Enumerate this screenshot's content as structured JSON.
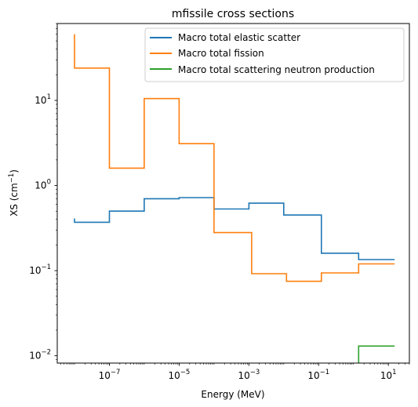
{
  "chart_data": {
    "type": "line",
    "title": "mfissile cross sections",
    "xlabel": "Energy (MeV)",
    "ylabel_main": "XS (cm",
    "ylabel_exp": "−1",
    "ylabel_close": ")",
    "xscale": "log",
    "yscale": "log",
    "xlim": [
      3.2e-09,
      40
    ],
    "ylim": [
      0.0082,
      80
    ],
    "grid": false,
    "legend_position": "top-right",
    "x_ticks": [
      {
        "value": 1e-07,
        "base": "10",
        "exp": "−7"
      },
      {
        "value": 1e-05,
        "base": "10",
        "exp": "−5"
      },
      {
        "value": 0.001,
        "base": "10",
        "exp": "−3"
      },
      {
        "value": 0.1,
        "base": "10",
        "exp": "−1"
      },
      {
        "value": 10,
        "base": "10",
        "exp": "1"
      }
    ],
    "y_ticks": [
      {
        "value": 0.01,
        "base": "10",
        "exp": "−2"
      },
      {
        "value": 0.1,
        "base": "10",
        "exp": "−1"
      },
      {
        "value": 1,
        "base": "10",
        "exp": "0"
      },
      {
        "value": 10,
        "base": "10",
        "exp": "1"
      }
    ],
    "series": [
      {
        "name": "Macro total elastic scatter",
        "color": "#1f77b4",
        "points": [
          [
            1e-08,
            0.41
          ],
          [
            1e-08,
            0.37
          ],
          [
            1e-07,
            0.37
          ],
          [
            1e-07,
            0.5
          ],
          [
            1e-06,
            0.5
          ],
          [
            1e-06,
            0.7
          ],
          [
            1e-05,
            0.7
          ],
          [
            1e-05,
            0.72
          ],
          [
            0.0001,
            0.72
          ],
          [
            0.0001,
            0.53
          ],
          [
            0.001,
            0.53
          ],
          [
            0.001,
            0.62
          ],
          [
            0.01,
            0.62
          ],
          [
            0.01,
            0.45
          ],
          [
            0.12,
            0.45
          ],
          [
            0.12,
            0.16
          ],
          [
            1.4,
            0.16
          ],
          [
            1.4,
            0.135
          ],
          [
            15,
            0.135
          ]
        ]
      },
      {
        "name": "Macro total fission",
        "color": "#ff7f0e",
        "points": [
          [
            1e-08,
            60
          ],
          [
            1e-08,
            24
          ],
          [
            1e-07,
            24
          ],
          [
            1e-07,
            1.6
          ],
          [
            1e-06,
            1.6
          ],
          [
            1e-06,
            10.5
          ],
          [
            1e-05,
            10.5
          ],
          [
            1e-05,
            3.1
          ],
          [
            0.0001,
            3.1
          ],
          [
            0.0001,
            0.28
          ],
          [
            0.0012,
            0.28
          ],
          [
            0.0012,
            0.092
          ],
          [
            0.012,
            0.092
          ],
          [
            0.012,
            0.075
          ],
          [
            0.12,
            0.075
          ],
          [
            0.12,
            0.094
          ],
          [
            1.4,
            0.094
          ],
          [
            1.4,
            0.12
          ],
          [
            15,
            0.12
          ]
        ]
      },
      {
        "name": "Macro total scattering neutron production",
        "color": "#2ca02c",
        "points": [
          [
            1.4,
            0.0082
          ],
          [
            1.4,
            0.013
          ],
          [
            15,
            0.013
          ]
        ]
      }
    ]
  }
}
